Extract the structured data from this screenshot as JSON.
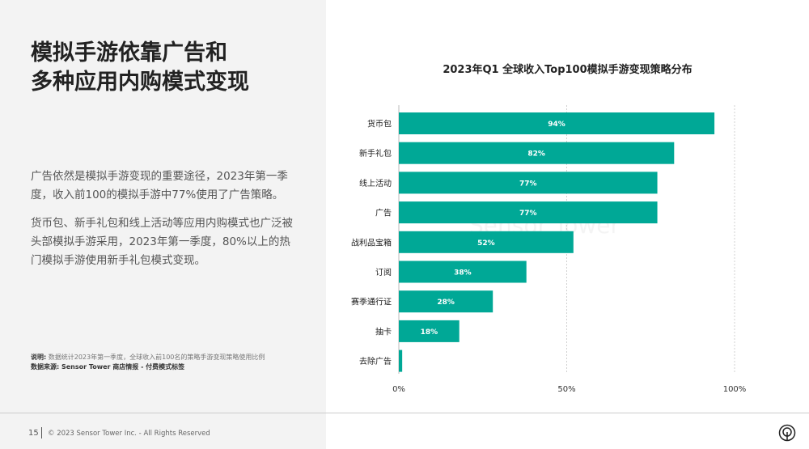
{
  "left": {
    "title_lines": [
      "模拟手游依靠广告和",
      "多种应用内购模式变现"
    ],
    "paragraph1": "广告依然是模拟手游变现的重要途径，2023年第一季度，收入前100的模拟手游中77%使用了广告策略。",
    "paragraph2": "货币包、新手礼包和线上活动等应用内购模式也广泛被头部模拟手游采用，2023年第一季度，80%以上的热门模拟手游使用新手礼包模式变现。",
    "note_label": "说明:",
    "note_text": "数据统计2023年第一季度，全球收入前100名的策略手游变现策略使用比例",
    "source": "数据来源: Sensor Tower 商店情报 - 付费模式标签"
  },
  "footer": {
    "page": "15",
    "copyright": "© 2023 Sensor Tower Inc. - All Rights Reserved",
    "logo_icon": "sensor-tower-logo-icon"
  },
  "watermark": "Sensor Tower",
  "colors": {
    "bar": "#00a896",
    "grid": "#d0d0d0"
  },
  "chart_data": {
    "type": "bar",
    "orientation": "horizontal",
    "title": "2023年Q1 全球收入Top100模拟手游变现策略分布",
    "categories": [
      "货币包",
      "新手礼包",
      "线上活动",
      "广告",
      "战利品宝箱",
      "订阅",
      "赛季通行证",
      "抽卡",
      "去除广告"
    ],
    "values": [
      94,
      82,
      77,
      77,
      52,
      38,
      28,
      18,
      1
    ],
    "data_labels": [
      "94%",
      "82%",
      "77%",
      "77%",
      "52%",
      "38%",
      "28%",
      "18%",
      "1%"
    ],
    "xlim": [
      0,
      100
    ],
    "xticks": [
      0,
      50,
      100
    ],
    "xtick_labels": [
      "0%",
      "50%",
      "100%"
    ],
    "grid": true
  }
}
